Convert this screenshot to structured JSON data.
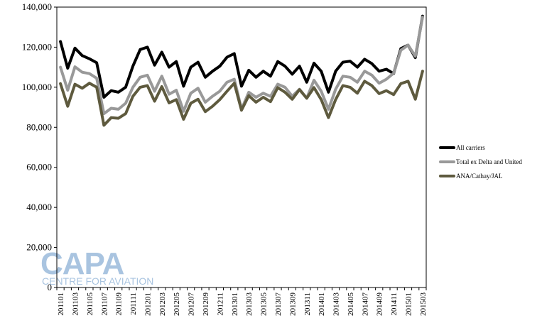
{
  "chart_data": {
    "type": "line",
    "title": "",
    "xlabel": "",
    "ylabel": "",
    "ylim": [
      0,
      140000
    ],
    "yticks": [
      0,
      20000,
      40000,
      60000,
      80000,
      100000,
      120000,
      140000
    ],
    "ytick_labels": [
      "0",
      "20,000",
      "40,000",
      "60,000",
      "80,000",
      "100,000",
      "120,000",
      "140,000"
    ],
    "grid": false,
    "legend_position": "right",
    "x": [
      "201101",
      "201102",
      "201103",
      "201104",
      "201105",
      "201106",
      "201107",
      "201108",
      "201109",
      "201110",
      "201111",
      "201112",
      "201201",
      "201202",
      "201203",
      "201204",
      "201205",
      "201206",
      "201207",
      "201208",
      "201209",
      "201210",
      "201211",
      "201212",
      "201301",
      "201302",
      "201303",
      "201304",
      "201305",
      "201306",
      "201307",
      "201308",
      "201309",
      "201310",
      "201311",
      "201312",
      "201401",
      "201402",
      "201403",
      "201404",
      "201405",
      "201406",
      "201407",
      "201408",
      "201409",
      "201410",
      "201411",
      "201412",
      "201501",
      "201502",
      "201503"
    ],
    "xtick_labels": [
      "201101",
      "201103",
      "201105",
      "201107",
      "201109",
      "201111",
      "201201",
      "201203",
      "201205",
      "201207",
      "201209",
      "201211",
      "201301",
      "201303",
      "201305",
      "201307",
      "201309",
      "201311",
      "201401",
      "201403",
      "201405",
      "201407",
      "201409",
      "201411",
      "201501",
      "201503"
    ],
    "series": [
      {
        "name": "All carriers",
        "color": "#000000",
        "values": [
          122800,
          109500,
          119500,
          115800,
          114200,
          112200,
          95000,
          98300,
          97500,
          100000,
          110500,
          118800,
          120000,
          111000,
          117500,
          110000,
          112800,
          100500,
          110000,
          112500,
          105000,
          108000,
          110500,
          115000,
          116800,
          100500,
          108500,
          105000,
          108000,
          105500,
          112800,
          110500,
          106500,
          110500,
          102500,
          112000,
          108000,
          97500,
          108000,
          112500,
          113000,
          110000,
          114000,
          111800,
          108000,
          109000,
          106800,
          119300,
          121000,
          114800,
          135500
        ]
      },
      {
        "name": "Total ex Delta and United",
        "color": "#999999",
        "values": [
          110000,
          98500,
          110200,
          107500,
          106800,
          104500,
          86800,
          89500,
          89000,
          92000,
          100000,
          105000,
          106000,
          98000,
          105500,
          96500,
          98500,
          88000,
          97000,
          99500,
          92500,
          95500,
          98000,
          102500,
          104000,
          89000,
          97500,
          95000,
          97000,
          95500,
          101500,
          100000,
          95500,
          99000,
          94500,
          103500,
          98000,
          89000,
          99000,
          105500,
          105000,
          102500,
          108000,
          106000,
          102000,
          104000,
          107000,
          118500,
          121000,
          115500,
          135000
        ]
      },
      {
        "name": "ANA/Cathay/JAL",
        "color": "#5e5a3e",
        "values": [
          101800,
          90500,
          101500,
          99500,
          102000,
          100000,
          81000,
          84800,
          84500,
          86800,
          95500,
          100000,
          100800,
          93000,
          100300,
          92200,
          93800,
          84000,
          92000,
          94000,
          87800,
          90500,
          93800,
          98000,
          102000,
          88500,
          95800,
          92500,
          95000,
          92800,
          99800,
          97500,
          94000,
          98800,
          94500,
          99800,
          93800,
          84800,
          93800,
          100800,
          100000,
          97000,
          103000,
          100800,
          96800,
          98300,
          96300,
          101800,
          103000,
          94000,
          108000
        ]
      }
    ]
  },
  "watermark": {
    "logo_text": "CAPA",
    "tagline": "CENTRE FOR AVIATION"
  }
}
